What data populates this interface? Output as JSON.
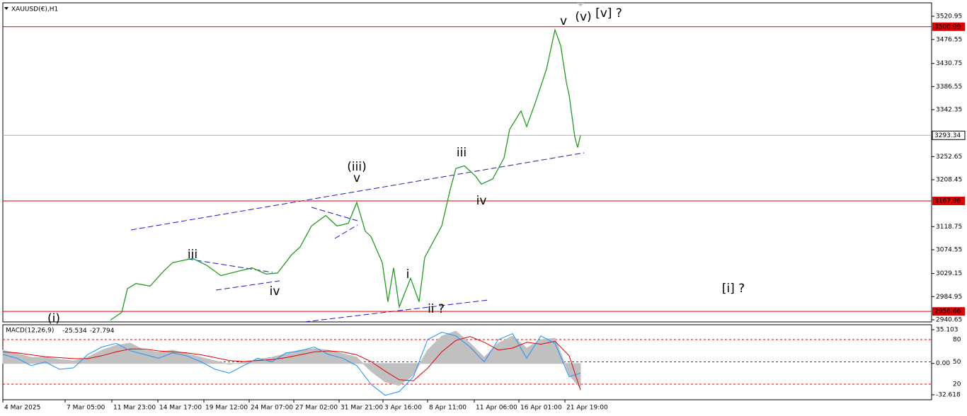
{
  "chart_data": [
    {
      "type": "line",
      "title": "XAUUSD(€),H1",
      "color": "#1f9d1f",
      "x": [
        38,
        42,
        44,
        47,
        52,
        57,
        60,
        67,
        72,
        77,
        82,
        88,
        93,
        97,
        102,
        105,
        109,
        114,
        118,
        122,
        125,
        128,
        130,
        134,
        136,
        138,
        140,
        144,
        147,
        149,
        153,
        155,
        158,
        160,
        163,
        167,
        169,
        173,
        177,
        179,
        183,
        185,
        188,
        192,
        195,
        197,
        199,
        200,
        202,
        203,
        204
      ],
      "values": [
        2940,
        2955,
        3000,
        3010,
        3005,
        3035,
        3050,
        3058,
        3045,
        3025,
        3032,
        3040,
        3028,
        3030,
        3065,
        3080,
        3120,
        3140,
        3120,
        3125,
        3165,
        3110,
        3100,
        3050,
        2975,
        3040,
        2965,
        3020,
        2975,
        3060,
        3100,
        3120,
        3190,
        3230,
        3235,
        3215,
        3200,
        3210,
        3250,
        3305,
        3340,
        3310,
        3355,
        3420,
        3495,
        3465,
        3395,
        3370,
        3290,
        3270,
        3293.34
      ],
      "xlim": [
        0,
        328
      ],
      "ylim": [
        2936.6,
        3546.65
      ],
      "xticks": [
        {
          "value": 0,
          "label": "4 Mar 2025"
        },
        {
          "value": 22,
          "label": "7 Mar 05:00"
        },
        {
          "value": 38.5,
          "label": "11 Mar 23:00"
        },
        {
          "value": 54.75,
          "label": "14 Mar 17:00"
        },
        {
          "value": 71,
          "label": "19 Mar 12:00"
        },
        {
          "value": 87,
          "label": "24 Mar 07:00"
        },
        {
          "value": 102.75,
          "label": "27 Mar 02:00"
        },
        {
          "value": 118.75,
          "label": "31 Mar 21:00"
        },
        {
          "value": 134.25,
          "label": "3 Apr 16:00"
        },
        {
          "value": 150,
          "label": "8 Apr 11:00"
        },
        {
          "value": 166.5,
          "label": "11 Apr 06:00"
        },
        {
          "value": 182.25,
          "label": "16 Apr 01:00"
        },
        {
          "value": 198.5,
          "label": "21 Apr 19:00"
        }
      ],
      "yticks": [
        3520.95,
        3476.55,
        3430.75,
        3386.55,
        3342.35,
        3252.65,
        3208.45,
        3118.75,
        3074.55,
        3029.15,
        2984.95,
        2940.65
      ],
      "levels": [
        3500.99,
        3167.96,
        2956.66
      ],
      "level_color": "#e00000",
      "current_price": 3293.34,
      "current_color": "#b0b0b0",
      "annotations": [
        {
          "text": "v",
          "x": 198,
          "y": 3511.5,
          "color": "#e020e0"
        },
        {
          "text": "(v)",
          "x": 205,
          "y": 3519.6,
          "color": "#1a1aff"
        },
        {
          "text": "[v] ?",
          "x": 214,
          "y": 3526.4,
          "color": "#118811"
        },
        {
          "text": "(iii)",
          "x": 125,
          "y": 3232.8,
          "color": "#1a1a99"
        },
        {
          "text": "v",
          "x": 125,
          "y": 3211,
          "color": "#e020e0"
        },
        {
          "text": "iii",
          "x": 67,
          "y": 3065,
          "color": "#e020e0"
        },
        {
          "text": "iv",
          "x": 96,
          "y": 2994.7,
          "color": "#e020e0"
        },
        {
          "text": "i",
          "x": 143,
          "y": 3027,
          "color": "#e020e0"
        },
        {
          "text": "ii ?",
          "x": 153,
          "y": 2961,
          "color": "#e020e0"
        },
        {
          "text": "iii",
          "x": 162,
          "y": 3259.9,
          "color": "#e020e0"
        },
        {
          "text": "iv",
          "x": 169,
          "y": 3168,
          "color": "#e020e0"
        },
        {
          "text": "[i] ?",
          "x": 258,
          "y": 3000,
          "color": "#118811"
        },
        {
          "text": "(i)",
          "x": 18,
          "y": 2943,
          "color": "#1a1a99"
        }
      ]
    },
    {
      "type": "macd",
      "title": "MACD(12,26,9)",
      "current_values": [
        -25.534,
        -27.794
      ],
      "x": [
        0,
        5,
        10,
        15,
        20,
        25,
        30,
        35,
        40,
        45,
        50,
        55,
        60,
        65,
        70,
        75,
        80,
        85,
        90,
        95,
        100,
        105,
        110,
        115,
        120,
        125,
        130,
        135,
        140,
        145,
        150,
        155,
        160,
        165,
        170,
        175,
        180,
        185,
        190,
        195,
        200,
        204
      ],
      "xlim": [
        0,
        328
      ],
      "ylim": [
        -37.77,
        40.26
      ],
      "y2lim": [
        -0.95,
        100
      ],
      "yticks": [
        35.103,
        {
          "value": 0,
          "label": "0.00"
        },
        -32.618
      ],
      "y2ticks": [
        80,
        50,
        20
      ],
      "y2tick_color": "#e00000",
      "series": [
        {
          "color": "#c0c0c0",
          "values": [
            13.8,
            10.1,
            6.4,
            6.4,
            4.2,
            2.7,
            6.4,
            13.8,
            18.9,
            21.1,
            13.8,
            11.6,
            13.8,
            10.1,
            6.4,
            2.7,
            -1,
            1.3,
            4.2,
            6.4,
            10.1,
            13.8,
            15.2,
            13.8,
            10.1,
            6.4,
            -8.2,
            -19.2,
            -22.9,
            -12,
            13.8,
            28.5,
            33.6,
            21.1,
            6.4,
            21.1,
            28.5,
            16,
            24.8,
            26.3,
            -12,
            -25.534
          ]
        },
        {
          "color": "#e00000",
          "values": [
            12,
            11,
            9,
            7,
            6,
            5,
            5,
            8,
            12,
            15,
            15,
            13,
            12,
            11,
            9,
            6,
            3,
            2,
            3,
            4,
            6,
            9,
            12,
            13,
            12,
            9,
            2,
            -8,
            -17,
            -18,
            -5,
            12,
            24,
            28,
            22,
            14,
            16,
            22,
            20,
            23,
            8,
            -27.794
          ]
        },
        {
          "color": "#1e90ff",
          "axis": "y2",
          "values": [
            60,
            55,
            45,
            50,
            40,
            42,
            60,
            70,
            75,
            65,
            60,
            55,
            62,
            58,
            50,
            40,
            35,
            45,
            55,
            50,
            62,
            65,
            70,
            60,
            55,
            45,
            20,
            5,
            10,
            30,
            80,
            90,
            85,
            70,
            50,
            80,
            88,
            55,
            85,
            75,
            30,
            35
          ]
        }
      ]
    }
  ]
}
